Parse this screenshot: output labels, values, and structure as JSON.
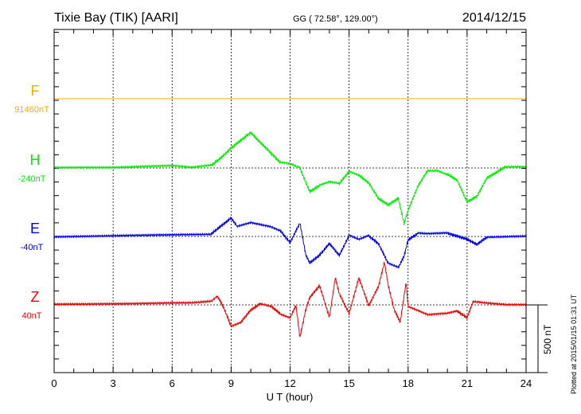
{
  "chart_data": {
    "type": "line",
    "title": "Tixie Bay (TIK)  [AARI]",
    "coords": "GG ( 72.58°, 129.00°)",
    "date": "2014/12/15",
    "xlabel": "U T (hour)",
    "xlim": [
      0,
      24
    ],
    "xticks": [
      "0",
      "3",
      "6",
      "9",
      "12",
      "15",
      "18",
      "21",
      "24"
    ],
    "scale_bar": "500 nT",
    "footer": "Plotted at 2015/01/15 01:31  UT",
    "grid": true,
    "series": [
      {
        "name": "F",
        "baseline_label": "91460nT",
        "color": "#ffaa00",
        "x": [
          0,
          24
        ],
        "y": [
          0,
          0
        ]
      },
      {
        "name": "H",
        "baseline_label": "-240nT",
        "color": "#00ee00",
        "x": [
          0,
          3,
          5,
          6,
          7,
          8,
          8.5,
          9,
          9.5,
          10,
          10.5,
          11,
          11.5,
          12,
          12.5,
          13,
          13.5,
          14,
          14.5,
          15,
          15.5,
          16,
          16.5,
          17,
          17.5,
          17.8,
          18,
          18.5,
          19,
          19.5,
          20,
          20.5,
          21,
          21.5,
          22,
          23,
          24
        ],
        "y": [
          0,
          0,
          12,
          18,
          6,
          24,
          82,
          153,
          212,
          270,
          194,
          123,
          47,
          35,
          6,
          -170,
          -124,
          -100,
          -112,
          -24,
          -53,
          -112,
          -229,
          -276,
          -229,
          -417,
          -318,
          -141,
          -24,
          -24,
          -53,
          -100,
          -259,
          -218,
          -82,
          6,
          6
        ]
      },
      {
        "name": "E",
        "baseline_label": "-40nT",
        "color": "#0000ee",
        "x": [
          0,
          8,
          8.5,
          9,
          9.3,
          10,
          11,
          11.5,
          12,
          12.3,
          12.5,
          12.8,
          13,
          13.5,
          14,
          14.5,
          15,
          15.5,
          16,
          16.5,
          17,
          17.5,
          17.8,
          18,
          18.5,
          19,
          20,
          21,
          21.5,
          22,
          24
        ],
        "y": [
          0,
          12,
          71,
          129,
          71,
          100,
          71,
          41,
          -47,
          41,
          100,
          -135,
          -194,
          -135,
          -47,
          -135,
          12,
          -18,
          12,
          -47,
          -194,
          -224,
          -135,
          -18,
          29,
          24,
          29,
          -18,
          -59,
          -6,
          0
        ]
      },
      {
        "name": "Z",
        "baseline_label": "40nT",
        "color": "#ee0000",
        "x": [
          0,
          3,
          6,
          7,
          8,
          8.3,
          8.6,
          9,
          9.5,
          10,
          10.5,
          11,
          11.5,
          12,
          12.3,
          12.5,
          12.8,
          13,
          13.5,
          14,
          14.3,
          14.5,
          15,
          15.5,
          16,
          16.5,
          16.8,
          17,
          17.3,
          17.6,
          17.9,
          18,
          18.5,
          19,
          20,
          20.5,
          21,
          21.3,
          22,
          23,
          24
        ],
        "y": [
          6,
          12,
          18,
          18,
          29,
          65,
          -12,
          -159,
          -129,
          -41,
          6,
          -12,
          -71,
          -100,
          -12,
          -247,
          -41,
          47,
          135,
          -100,
          194,
          76,
          -71,
          194,
          -12,
          135,
          312,
          135,
          -41,
          -129,
          165,
          -12,
          -41,
          -71,
          -59,
          -41,
          -88,
          29,
          18,
          6,
          6
        ]
      }
    ]
  }
}
